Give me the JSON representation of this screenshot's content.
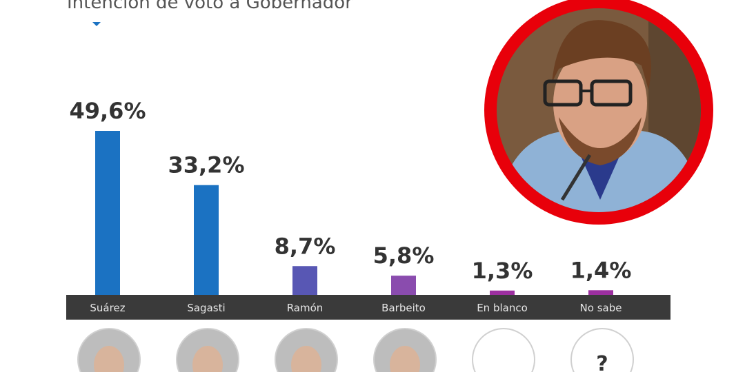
{
  "chart_data": {
    "type": "bar",
    "title": "Intención de voto a Gobernador",
    "categories": [
      "Suárez",
      "Sagasti",
      "Ramón",
      "Barbeito",
      "En blanco",
      "No sabe"
    ],
    "values": [
      49.6,
      33.2,
      8.7,
      5.8,
      1.3,
      1.4
    ],
    "value_labels": [
      "49,6%",
      "33,2%",
      "8,7%",
      "5,8%",
      "1,3%",
      "1,4%"
    ],
    "colors": [
      "#1b72c2",
      "#1b72c2",
      "#5857b4",
      "#8a4cae",
      "#9c2fa0",
      "#9c2fa0"
    ]
  },
  "unknown_icon": "?"
}
